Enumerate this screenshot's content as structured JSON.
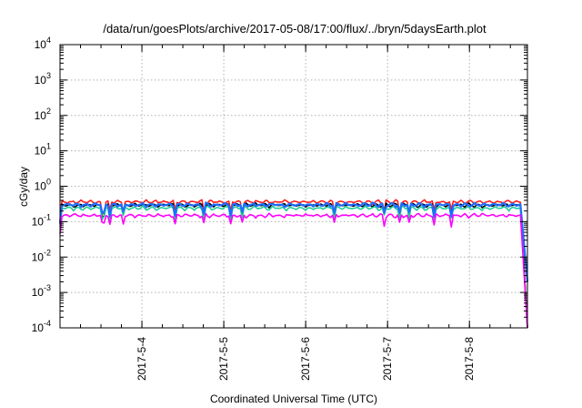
{
  "chart_data": {
    "type": "line",
    "title": "/data/run/goesPlots/archive/2017-05-08/17:00/flux/../bryn/5daysEarth.plot",
    "xlabel": "Coordinated Universal Time (UTC)",
    "ylabel": "cGy/day",
    "yscale": "log",
    "ylim": [
      0.0001,
      10000
    ],
    "xlim": [
      "2017-05-03 00:00",
      "2017-05-08 17:00"
    ],
    "y_ticks": [
      {
        "mantissa": "10",
        "exp": "-4"
      },
      {
        "mantissa": "10",
        "exp": "-3"
      },
      {
        "mantissa": "10",
        "exp": "-2"
      },
      {
        "mantissa": "10",
        "exp": "-1"
      },
      {
        "mantissa": "10",
        "exp": "0"
      },
      {
        "mantissa": "10",
        "exp": "1"
      },
      {
        "mantissa": "10",
        "exp": "2"
      },
      {
        "mantissa": "10",
        "exp": "3"
      },
      {
        "mantissa": "10",
        "exp": "4"
      }
    ],
    "x_ticks": [
      "2017-5-4",
      "2017-5-5",
      "2017-5-6",
      "2017-5-7",
      "2017-5-8"
    ],
    "grid": true,
    "legend": "none",
    "series": [
      {
        "color": "#ff2020",
        "base": 0.36,
        "end": 0.0001
      },
      {
        "color": "#000000",
        "base": 0.29,
        "end": 0.0001
      },
      {
        "color": "#22cc99",
        "base": 0.24,
        "end": 0.0001
      },
      {
        "color": "#1e6eff",
        "base": 0.3,
        "end": 0.002
      },
      {
        "color": "#ff00ff",
        "base": 0.15,
        "end": 0.0001
      }
    ]
  }
}
